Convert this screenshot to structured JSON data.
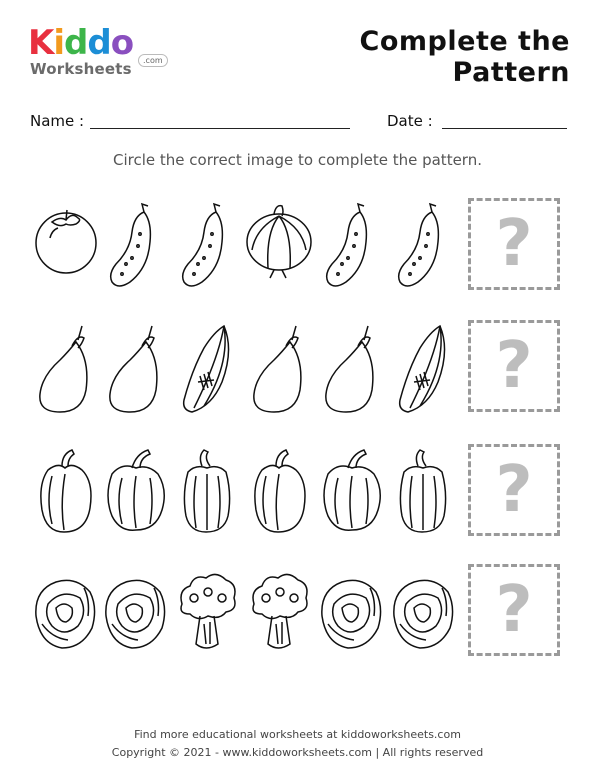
{
  "logo": {
    "letters": [
      {
        "char": "K",
        "color": "#e8303f"
      },
      {
        "char": "i",
        "color": "#f29a1e"
      },
      {
        "char": "d",
        "color": "#3db54a"
      },
      {
        "char": "d",
        "color": "#1c8ed6"
      },
      {
        "char": "o",
        "color": "#8a4fbf"
      }
    ],
    "sub": "Worksheets",
    "com": ".com"
  },
  "title": "Complete the Pattern",
  "fields": {
    "name_label": "Name :",
    "date_label": "Date :"
  },
  "instruction": "Circle the correct image to complete the pattern.",
  "rows": [
    {
      "items": [
        "tomato-icon",
        "cucumber-icon",
        "cucumber-icon",
        "onion-icon",
        "cucumber-icon",
        "cucumber-icon"
      ],
      "answer": "?"
    },
    {
      "items": [
        "eggplant-icon",
        "eggplant-icon",
        "corn-icon",
        "eggplant-icon",
        "eggplant-icon",
        "corn-icon"
      ],
      "answer": "?"
    },
    {
      "items": [
        "bell-pepper-icon",
        "bell-pepper-icon",
        "bell-pepper-icon",
        "bell-pepper-icon",
        "bell-pepper-icon",
        "bell-pepper-icon"
      ],
      "answer": "?"
    },
    {
      "items": [
        "cabbage-icon",
        "cabbage-icon",
        "broccoli-icon",
        "broccoli-icon",
        "cabbage-icon",
        "cabbage-icon"
      ],
      "answer": "?"
    }
  ],
  "footer": {
    "line1": "Find more educational worksheets at kiddoworksheets.com",
    "line2": "Copyright © 2021 - www.kiddoworksheets.com  |  All rights reserved"
  }
}
